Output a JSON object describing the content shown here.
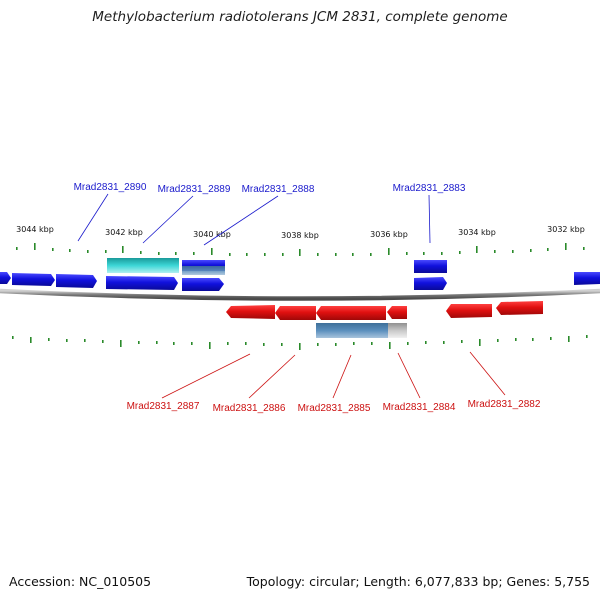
{
  "title": "Methylobacterium radiotolerans JCM 2831, complete genome",
  "accession_label": "Accession: NC_010505",
  "stats_label": "Topology: circular; Length: 6,077,833 bp; Genes: 5,755",
  "kbp_ticks": [
    "3044 kbp",
    "3042 kbp",
    "3040 kbp",
    "3038 kbp",
    "3036 kbp",
    "3034 kbp",
    "3032 kbp"
  ],
  "colors": {
    "forward_gene": "#1515d6",
    "reverse_gene": "#dd1a1a",
    "rna_feature": "#22bcbc",
    "pseudo_feature": "#4d7ea8",
    "tick": "#2a8a2a",
    "backbone": "#808080"
  },
  "gene_labels": {
    "top": [
      "Mrad2831_2890",
      "Mrad2831_2889",
      "Mrad2831_2888",
      "Mrad2831_2883"
    ],
    "bottom": [
      "Mrad2831_2887",
      "Mrad2831_2886",
      "Mrad2831_2885",
      "Mrad2831_2884",
      "Mrad2831_2882"
    ]
  }
}
